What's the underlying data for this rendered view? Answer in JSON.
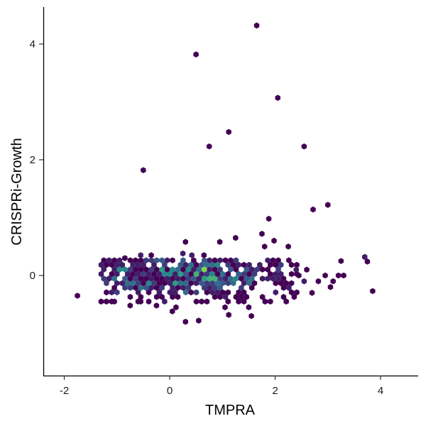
{
  "chart_data": {
    "type": "hexbin",
    "xlabel": "TMPRA",
    "ylabel": "CRISPRi-Growth",
    "xlim": [
      -2.4,
      4.65
    ],
    "ylim": [
      -1.9,
      4.65
    ],
    "x_ticks": [
      -2,
      0,
      2,
      4
    ],
    "y_ticks": [
      0,
      2,
      4
    ],
    "x_tick_labels": [
      "-2",
      "0",
      "2",
      "4"
    ],
    "y_tick_labels": [
      "0",
      "2",
      "4"
    ],
    "grid": false,
    "legend": "none",
    "colormap": [
      "#440154",
      "#3b528b",
      "#21918c",
      "#5ec962",
      "#fde725"
    ],
    "count_range": [
      1,
      12
    ],
    "bins": [
      {
        "x": -1.75,
        "y": -0.35,
        "count": 1
      },
      {
        "x": -0.5,
        "y": 1.82,
        "count": 1
      },
      {
        "x": 0.5,
        "y": 3.82,
        "count": 1
      },
      {
        "x": 1.65,
        "y": 4.32,
        "count": 1
      },
      {
        "x": 2.05,
        "y": 3.07,
        "count": 1
      },
      {
        "x": 1.12,
        "y": 2.48,
        "count": 1
      },
      {
        "x": 0.75,
        "y": 2.23,
        "count": 1
      },
      {
        "x": 2.55,
        "y": 2.23,
        "count": 1
      },
      {
        "x": 3.0,
        "y": 1.22,
        "count": 1
      },
      {
        "x": 2.72,
        "y": 1.14,
        "count": 1
      },
      {
        "x": 1.88,
        "y": 0.98,
        "count": 1
      },
      {
        "x": 1.75,
        "y": 0.72,
        "count": 1
      },
      {
        "x": 1.25,
        "y": 0.65,
        "count": 1
      },
      {
        "x": 1.8,
        "y": 0.5,
        "count": 1
      },
      {
        "x": 2.25,
        "y": 0.5,
        "count": 1
      },
      {
        "x": 0.3,
        "y": 0.58,
        "count": 1
      },
      {
        "x": 0.95,
        "y": 0.58,
        "count": 1
      },
      {
        "x": 1.98,
        "y": 0.6,
        "count": 1
      },
      {
        "x": 3.7,
        "y": 0.32,
        "count": 2
      },
      {
        "x": 3.75,
        "y": 0.24,
        "count": 1
      },
      {
        "x": 3.85,
        "y": -0.27,
        "count": 1
      },
      {
        "x": 3.3,
        "y": 0.0,
        "count": 1
      },
      {
        "x": 3.2,
        "y": 0.0,
        "count": 1
      },
      {
        "x": 3.1,
        "y": -0.1,
        "count": 1
      },
      {
        "x": 3.05,
        "y": -0.2,
        "count": 1
      },
      {
        "x": 2.95,
        "y": 0.0,
        "count": 1
      },
      {
        "x": 3.25,
        "y": 0.25,
        "count": 1
      },
      {
        "x": 2.82,
        "y": -0.1,
        "count": 1
      },
      {
        "x": 2.7,
        "y": -0.3,
        "count": 1
      },
      {
        "x": 2.55,
        "y": -0.1,
        "count": 2
      },
      {
        "x": 2.45,
        "y": 0.0,
        "count": 1
      },
      {
        "x": 2.6,
        "y": 0.1,
        "count": 1
      },
      {
        "x": 2.4,
        "y": 0.1,
        "count": 2
      },
      {
        "x": 0.3,
        "y": -0.8,
        "count": 1
      },
      {
        "x": 0.55,
        "y": -0.78,
        "count": 1
      },
      {
        "x": 1.05,
        "y": -0.55,
        "count": 1
      },
      {
        "x": 1.12,
        "y": -0.68,
        "count": 1
      },
      {
        "x": 1.55,
        "y": -0.7,
        "count": 1
      },
      {
        "x": 1.5,
        "y": -0.55,
        "count": 1
      },
      {
        "x": 0.12,
        "y": -0.55,
        "count": 1
      },
      {
        "x": 0.05,
        "y": -0.62,
        "count": 1
      },
      {
        "x": -0.25,
        "y": -0.52,
        "count": 1
      },
      {
        "x": -0.75,
        "y": -0.52,
        "count": 1
      },
      {
        "x": -0.55,
        "y": -0.45,
        "count": 1
      },
      {
        "x": -1.05,
        "y": -0.45,
        "count": 1
      },
      {
        "x": 0.25,
        "y": 0.38,
        "count": 2
      },
      {
        "x": 0.42,
        "y": 0.35,
        "count": 2
      },
      {
        "x": 0.65,
        "y": 0.35,
        "count": 1
      },
      {
        "x": -0.55,
        "y": 0.35,
        "count": 2
      },
      {
        "x": -0.85,
        "y": 0.3,
        "count": 1
      },
      {
        "x": -0.35,
        "y": 0.35,
        "count": 1
      }
    ],
    "dense_region": {
      "x_range": [
        -1.3,
        2.5
      ],
      "y_range": [
        -0.45,
        0.3
      ],
      "peak_x": 0.25,
      "peak_y": 0.0
    }
  }
}
